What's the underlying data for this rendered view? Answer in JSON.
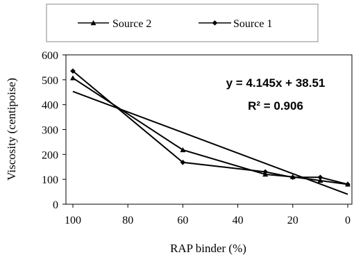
{
  "chart_data": {
    "type": "line",
    "xlabel": "RAP binder (%)",
    "ylabel": "Viscosity (centipoise)",
    "x_ticks": [
      "100",
      "80",
      "60",
      "40",
      "20",
      "0"
    ],
    "y_ticks": [
      "0",
      "100",
      "200",
      "300",
      "400",
      "500",
      "600"
    ],
    "ylim": [
      0,
      600
    ],
    "x_axis_reversed_nonlinear": true,
    "grid": false,
    "legend_position": "top",
    "series": [
      {
        "name": "Source 2",
        "marker": "triangle",
        "x": [
          100,
          60,
          30,
          20,
          10,
          0
        ],
        "y": [
          507,
          218,
          120,
          110,
          95,
          80
        ]
      },
      {
        "name": "Source 1",
        "marker": "diamond",
        "x": [
          100,
          60,
          30,
          20,
          10,
          0
        ],
        "y": [
          535,
          168,
          130,
          108,
          108,
          80
        ]
      }
    ],
    "trendline": {
      "equation": "y = 4.145x + 38.51",
      "r_squared": "R² = 0.906",
      "from": [
        100,
        453
      ],
      "to": [
        0,
        40
      ]
    }
  },
  "colors": {
    "line": "#000000",
    "background": "#ffffff"
  }
}
